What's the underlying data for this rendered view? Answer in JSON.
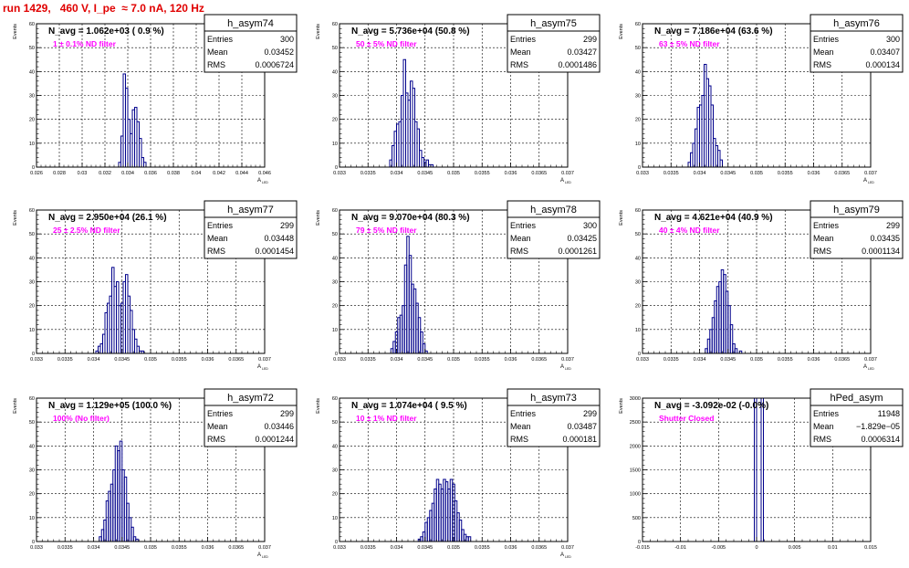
{
  "page": {
    "title": "run 1429,   460 V, I_pe  ≈ 7.0 nA, 120 Hz"
  },
  "colors": {
    "title": "#e00000",
    "histogram": "#00008b",
    "label": "#ff00ff",
    "grid": "#000000",
    "stats_border": "#000000"
  },
  "chart_data": [
    {
      "type": "bar",
      "name": "h_asym74",
      "nbins": 100,
      "xlim": [
        0.026,
        0.046
      ],
      "ylim": [
        0,
        60
      ],
      "ylabel": "Events",
      "xlabel": "A_LED",
      "xticks": [
        "0.026",
        "0.028",
        "0.03",
        "0.032",
        "0.034",
        "0.036",
        "0.038",
        "0.04",
        "0.042",
        "0.044",
        "0.046"
      ],
      "yticks": [
        "0",
        "10",
        "20",
        "30",
        "40",
        "50",
        "60"
      ],
      "navg": "N_avg = 1.062e+03 ( 0.9 %)",
      "label": "1 ± 0.1% ND filter",
      "stats": {
        "title": "h_asym74",
        "entries": "300",
        "mean": "0.03452",
        "rms": "0.0006724"
      },
      "bins": [
        [
          0.0332,
          2
        ],
        [
          0.0334,
          13
        ],
        [
          0.0336,
          39
        ],
        [
          0.0338,
          33
        ],
        [
          0.034,
          20
        ],
        [
          0.0342,
          14
        ],
        [
          0.0344,
          24
        ],
        [
          0.0346,
          25
        ],
        [
          0.0348,
          19
        ],
        [
          0.035,
          12
        ],
        [
          0.0352,
          4
        ],
        [
          0.0354,
          2
        ]
      ]
    },
    {
      "type": "bar",
      "name": "h_asym75",
      "nbins": 100,
      "xlim": [
        0.033,
        0.037
      ],
      "ylim": [
        0,
        60
      ],
      "ylabel": "Events",
      "xlabel": "A_LED",
      "xticks": [
        "0.033",
        "0.0335",
        "0.034",
        "0.0345",
        "0.035",
        "0.0355",
        "0.036",
        "0.0365",
        "0.037"
      ],
      "yticks": [
        "0",
        "10",
        "20",
        "30",
        "40",
        "50",
        "60"
      ],
      "navg": "N_avg = 5.736e+04 (50.8 %)",
      "label": "50 ± 5% ND filter",
      "stats": {
        "title": "h_asym75",
        "entries": "299",
        "mean": "0.03427",
        "rms": "0.0001486"
      },
      "bins": [
        [
          0.03388,
          3
        ],
        [
          0.03392,
          9
        ],
        [
          0.03396,
          15
        ],
        [
          0.034,
          18
        ],
        [
          0.03404,
          19
        ],
        [
          0.03408,
          30
        ],
        [
          0.03412,
          45
        ],
        [
          0.03416,
          31
        ],
        [
          0.0342,
          28
        ],
        [
          0.03424,
          36
        ],
        [
          0.03428,
          33
        ],
        [
          0.03432,
          19
        ],
        [
          0.03436,
          16
        ],
        [
          0.0344,
          7
        ],
        [
          0.03444,
          4
        ],
        [
          0.03448,
          2
        ],
        [
          0.03452,
          3
        ],
        [
          0.03456,
          1
        ],
        [
          0.0346,
          1
        ]
      ]
    },
    {
      "type": "bar",
      "name": "h_asym76",
      "nbins": 100,
      "xlim": [
        0.033,
        0.037
      ],
      "ylim": [
        0,
        60
      ],
      "ylabel": "Events",
      "xlabel": "A_LED",
      "xticks": [
        "0.033",
        "0.0335",
        "0.034",
        "0.0345",
        "0.035",
        "0.0355",
        "0.036",
        "0.0365",
        "0.037"
      ],
      "yticks": [
        "0",
        "10",
        "20",
        "30",
        "40",
        "50",
        "60"
      ],
      "navg": "N_avg = 7.186e+04 (63.6 %)",
      "label": "63 ± 5% ND filter",
      "stats": {
        "title": "h_asym76",
        "entries": "300",
        "mean": "0.03407",
        "rms": "0.000134"
      },
      "bins": [
        [
          0.0338,
          2
        ],
        [
          0.03384,
          6
        ],
        [
          0.03388,
          10
        ],
        [
          0.03392,
          16
        ],
        [
          0.03396,
          25
        ],
        [
          0.034,
          26
        ],
        [
          0.03404,
          30
        ],
        [
          0.03408,
          43
        ],
        [
          0.03412,
          37
        ],
        [
          0.03416,
          34
        ],
        [
          0.0342,
          26
        ],
        [
          0.03424,
          12
        ],
        [
          0.03428,
          9
        ],
        [
          0.03432,
          7
        ],
        [
          0.03436,
          3
        ]
      ]
    },
    {
      "type": "bar",
      "name": "h_asym77",
      "nbins": 100,
      "xlim": [
        0.033,
        0.037
      ],
      "ylim": [
        0,
        60
      ],
      "ylabel": "Events",
      "xlabel": "A_LED",
      "xticks": [
        "0.033",
        "0.0335",
        "0.034",
        "0.0345",
        "0.035",
        "0.0355",
        "0.036",
        "0.0365",
        "0.037"
      ],
      "yticks": [
        "0",
        "10",
        "20",
        "30",
        "40",
        "50",
        "60"
      ],
      "navg": "N_avg = 2.950e+04 (26.1 %)",
      "label": "25 ± 2.5% ND filter",
      "stats": {
        "title": "h_asym77",
        "entries": "299",
        "mean": "0.03448",
        "rms": "0.0001454"
      },
      "bins": [
        [
          0.03404,
          1
        ],
        [
          0.03408,
          3
        ],
        [
          0.03412,
          4
        ],
        [
          0.03416,
          8
        ],
        [
          0.0342,
          17
        ],
        [
          0.03424,
          21
        ],
        [
          0.03428,
          24
        ],
        [
          0.03432,
          36
        ],
        [
          0.03436,
          28
        ],
        [
          0.0344,
          30
        ],
        [
          0.03444,
          20
        ],
        [
          0.03448,
          21
        ],
        [
          0.03452,
          30
        ],
        [
          0.03456,
          33
        ],
        [
          0.0346,
          24
        ],
        [
          0.03464,
          18
        ],
        [
          0.03468,
          10
        ],
        [
          0.03472,
          6
        ],
        [
          0.03476,
          3
        ],
        [
          0.0348,
          1
        ],
        [
          0.03484,
          1
        ]
      ]
    },
    {
      "type": "bar",
      "name": "h_asym78",
      "nbins": 100,
      "xlim": [
        0.033,
        0.037
      ],
      "ylim": [
        0,
        60
      ],
      "ylabel": "Events",
      "xlabel": "A_LED",
      "xticks": [
        "0.033",
        "0.0335",
        "0.034",
        "0.0345",
        "0.035",
        "0.0355",
        "0.036",
        "0.0365",
        "0.037"
      ],
      "yticks": [
        "0",
        "10",
        "20",
        "30",
        "40",
        "50",
        "60"
      ],
      "navg": "N_avg = 9.070e+04 (80.3 %)",
      "label": "79 ± 5% ND filter",
      "stats": {
        "title": "h_asym78",
        "entries": "300",
        "mean": "0.03425",
        "rms": "0.0001261"
      },
      "bins": [
        [
          0.0339,
          2
        ],
        [
          0.03394,
          5
        ],
        [
          0.03398,
          9
        ],
        [
          0.03402,
          15
        ],
        [
          0.03406,
          16
        ],
        [
          0.0341,
          20
        ],
        [
          0.03414,
          37
        ],
        [
          0.03418,
          49
        ],
        [
          0.03422,
          41
        ],
        [
          0.03426,
          29
        ],
        [
          0.0343,
          27
        ],
        [
          0.03434,
          21
        ],
        [
          0.03438,
          15
        ],
        [
          0.03442,
          9
        ],
        [
          0.03446,
          4
        ],
        [
          0.0345,
          1
        ]
      ]
    },
    {
      "type": "bar",
      "name": "h_asym79",
      "nbins": 100,
      "xlim": [
        0.033,
        0.037
      ],
      "ylim": [
        0,
        60
      ],
      "ylabel": "Events",
      "xlabel": "A_LED",
      "xticks": [
        "0.033",
        "0.0335",
        "0.034",
        "0.0345",
        "0.035",
        "0.0355",
        "0.036",
        "0.0365",
        "0.037"
      ],
      "yticks": [
        "0",
        "10",
        "20",
        "30",
        "40",
        "50",
        "60"
      ],
      "navg": "N_avg = 4.621e+04 (40.9 %)",
      "label": "40 ± 4% ND filter",
      "stats": {
        "title": "h_asym79",
        "entries": "299",
        "mean": "0.03435",
        "rms": "0.0001134"
      },
      "bins": [
        [
          0.0341,
          2
        ],
        [
          0.03414,
          6
        ],
        [
          0.03418,
          10
        ],
        [
          0.03422,
          15
        ],
        [
          0.03426,
          22
        ],
        [
          0.0343,
          28
        ],
        [
          0.03434,
          30
        ],
        [
          0.03438,
          35
        ],
        [
          0.03442,
          33
        ],
        [
          0.03446,
          26
        ],
        [
          0.0345,
          20
        ],
        [
          0.03454,
          12
        ],
        [
          0.03458,
          4
        ],
        [
          0.03462,
          2
        ],
        [
          0.0347,
          1
        ]
      ]
    },
    {
      "type": "bar",
      "name": "h_asym72",
      "nbins": 100,
      "xlim": [
        0.033,
        0.037
      ],
      "ylim": [
        0,
        60
      ],
      "ylabel": "Events",
      "xlabel": "A_LED",
      "xticks": [
        "0.033",
        "0.0335",
        "0.034",
        "0.0345",
        "0.035",
        "0.0355",
        "0.036",
        "0.0365",
        "0.037"
      ],
      "yticks": [
        "0",
        "10",
        "20",
        "30",
        "40",
        "50",
        "60"
      ],
      "navg": "N_avg = 1.129e+05 (100.0 %)",
      "label": "100% (No filter)",
      "stats": {
        "title": "h_asym72",
        "entries": "299",
        "mean": "0.03446",
        "rms": "0.0001244"
      },
      "bins": [
        [
          0.0341,
          2
        ],
        [
          0.03414,
          5
        ],
        [
          0.03418,
          9
        ],
        [
          0.03422,
          17
        ],
        [
          0.03426,
          21
        ],
        [
          0.0343,
          24
        ],
        [
          0.03434,
          30
        ],
        [
          0.03438,
          40
        ],
        [
          0.03442,
          38
        ],
        [
          0.03446,
          42
        ],
        [
          0.0345,
          30
        ],
        [
          0.03454,
          27
        ],
        [
          0.03458,
          16
        ],
        [
          0.03462,
          10
        ],
        [
          0.03466,
          6
        ],
        [
          0.0347,
          2
        ],
        [
          0.03474,
          1
        ]
      ]
    },
    {
      "type": "bar",
      "name": "h_asym73",
      "nbins": 100,
      "xlim": [
        0.033,
        0.037
      ],
      "ylim": [
        0,
        60
      ],
      "ylabel": "Events",
      "xlabel": "A_LED",
      "xticks": [
        "0.033",
        "0.0335",
        "0.034",
        "0.0345",
        "0.035",
        "0.0355",
        "0.036",
        "0.0365",
        "0.037"
      ],
      "yticks": [
        "0",
        "10",
        "20",
        "30",
        "40",
        "50",
        "60"
      ],
      "navg": "N_avg = 1.074e+04 ( 9.5 %)",
      "label": "10 ± 1% ND filter",
      "stats": {
        "title": "h_asym73",
        "entries": "299",
        "mean": "0.03487",
        "rms": "0.000181"
      },
      "bins": [
        [
          0.03438,
          1
        ],
        [
          0.03442,
          2
        ],
        [
          0.03446,
          4
        ],
        [
          0.0345,
          8
        ],
        [
          0.03454,
          10
        ],
        [
          0.03458,
          13
        ],
        [
          0.03462,
          16
        ],
        [
          0.03466,
          22
        ],
        [
          0.0347,
          26
        ],
        [
          0.03474,
          24
        ],
        [
          0.03478,
          22
        ],
        [
          0.03482,
          26
        ],
        [
          0.03486,
          25
        ],
        [
          0.0349,
          22
        ],
        [
          0.03494,
          26
        ],
        [
          0.03498,
          24
        ],
        [
          0.03502,
          17
        ],
        [
          0.03506,
          12
        ],
        [
          0.0351,
          9
        ],
        [
          0.03514,
          5
        ],
        [
          0.03518,
          3
        ],
        [
          0.03522,
          2
        ],
        [
          0.03526,
          2
        ]
      ]
    },
    {
      "type": "bar",
      "name": "hPed_asym",
      "nbins": 100,
      "xlim": [
        -0.015,
        0.015
      ],
      "ylim": [
        0,
        3000
      ],
      "ylabel": "Events",
      "xlabel": "",
      "xticks": [
        "-0.015",
        "-0.01",
        "-0.005",
        "0",
        "0.005",
        "0.01",
        "0.015"
      ],
      "yticks": [
        "0",
        "500",
        "1000",
        "1500",
        "2000",
        "2500",
        "3000"
      ],
      "navg": "N_avg = -3.092e-02 (-0.0%)",
      "label": "Shutter Closed",
      "stats": {
        "title": "hPed_asym",
        "entries": "11948",
        "mean": "−1.829e−05",
        "rms": "0.0006314"
      },
      "bins": [
        [
          -0.0003,
          3000
        ],
        [
          0.0006,
          3000
        ]
      ]
    }
  ]
}
